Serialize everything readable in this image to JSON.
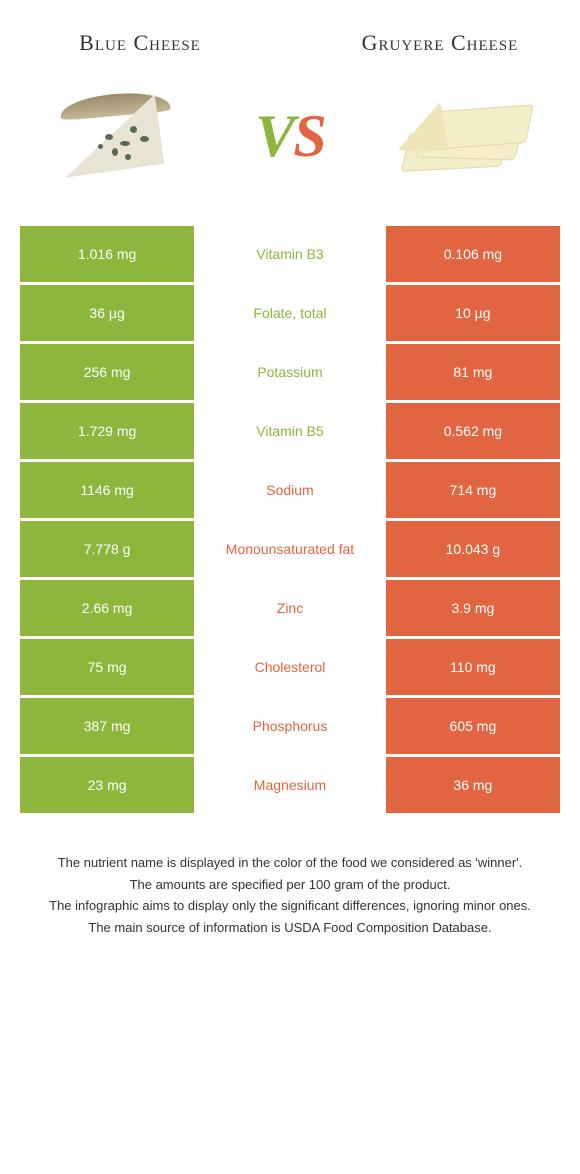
{
  "colors": {
    "left": "#8cb63c",
    "right": "#e06540",
    "text_dark": "#333333"
  },
  "header": {
    "left_title": "Blue Cheese",
    "right_title": "Gruyere Cheese",
    "vs_v": "V",
    "vs_s": "S"
  },
  "rows": [
    {
      "left": "1.016 mg",
      "label": "Vitamin B3",
      "right": "0.106 mg",
      "winner": "left"
    },
    {
      "left": "36 µg",
      "label": "Folate, total",
      "right": "10 µg",
      "winner": "left"
    },
    {
      "left": "256 mg",
      "label": "Potassium",
      "right": "81 mg",
      "winner": "left"
    },
    {
      "left": "1.729 mg",
      "label": "Vitamin B5",
      "right": "0.562 mg",
      "winner": "left"
    },
    {
      "left": "1146 mg",
      "label": "Sodium",
      "right": "714 mg",
      "winner": "right"
    },
    {
      "left": "7.778 g",
      "label": "Monounsaturated fat",
      "right": "10.043 g",
      "winner": "right"
    },
    {
      "left": "2.66 mg",
      "label": "Zinc",
      "right": "3.9 mg",
      "winner": "right"
    },
    {
      "left": "75 mg",
      "label": "Cholesterol",
      "right": "110 mg",
      "winner": "right"
    },
    {
      "left": "387 mg",
      "label": "Phosphorus",
      "right": "605 mg",
      "winner": "right"
    },
    {
      "left": "23 mg",
      "label": "Magnesium",
      "right": "36 mg",
      "winner": "right"
    }
  ],
  "footer": {
    "line1": "The nutrient name is displayed in the color of the food we considered as 'winner'.",
    "line2": "The amounts are specified per 100 gram of the product.",
    "line3": "The infographic aims to display only the significant differences, ignoring minor ones.",
    "line4": "The main source of information is USDA Food Composition Database."
  }
}
